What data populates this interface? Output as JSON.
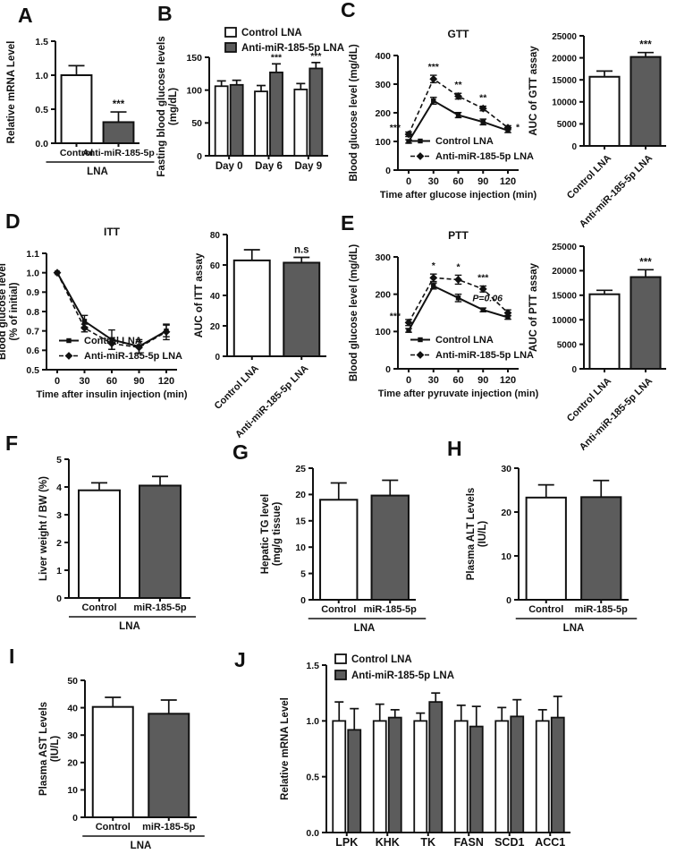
{
  "meta": {
    "background": "#ffffff",
    "ink": "#111111",
    "bar_gray": "#5c5c5c",
    "bar_white": "#ffffff"
  },
  "legend_labels": {
    "control": "Control LNA",
    "anti": "Anti-miR-185-5p LNA"
  },
  "chart_data": [
    {
      "id": "A",
      "letter": "A",
      "type": "bar",
      "ylabel": [
        "Relative mRNA Level"
      ],
      "ylim": [
        0,
        1.5
      ],
      "yticks": [
        0,
        0.5,
        1,
        1.5
      ],
      "ytick_labels": [
        "0.0",
        "0.5",
        "1.0",
        "1.5"
      ],
      "categories": [
        "Control",
        "Anti-miR-185-5p"
      ],
      "values": [
        1.0,
        0.31
      ],
      "errors": [
        0.14,
        0.15
      ],
      "sig": [
        "",
        "***"
      ],
      "fills": [
        "white",
        "gray"
      ],
      "xlabel_mode": "flat",
      "group_label": "LNA"
    },
    {
      "id": "B",
      "letter": "B",
      "type": "groupbar",
      "ylabel": [
        "Fasting blood glucose levels",
        "(mg/dL)"
      ],
      "ylim": [
        0,
        150
      ],
      "yticks": [
        0,
        50,
        100,
        150
      ],
      "ytick_labels": [
        "0",
        "50",
        "100",
        "150"
      ],
      "categories": [
        "Day 0",
        "Day 6",
        "Day 9"
      ],
      "series": [
        {
          "name": "Control LNA",
          "fill": "white",
          "values": [
            106,
            98,
            101
          ],
          "errors": [
            8,
            9,
            9
          ],
          "sig": [
            "",
            "",
            ""
          ]
        },
        {
          "name": "Anti-miR-185-5p LNA",
          "fill": "gray",
          "values": [
            108,
            127,
            133
          ],
          "errors": [
            7,
            13,
            9
          ],
          "sig": [
            "",
            "***",
            "***"
          ]
        }
      ],
      "legend": "top"
    },
    {
      "id": "C1",
      "letter": "C",
      "type": "line",
      "title": "GTT",
      "ylabel": [
        "Blood glucose level (mg/dL)"
      ],
      "xlabel": "Time after glucose injection (min)",
      "ylim": [
        0,
        400
      ],
      "yticks": [
        0,
        100,
        200,
        300,
        400
      ],
      "ytick_labels": [
        "0",
        "100",
        "200",
        "300",
        "400"
      ],
      "x": [
        0,
        30,
        60,
        90,
        120
      ],
      "series": [
        {
          "name": "Control LNA",
          "style": "solid",
          "marker": "square",
          "values": [
            100,
            242,
            192,
            168,
            138
          ],
          "errors": [
            6,
            12,
            9,
            10,
            7
          ]
        },
        {
          "name": "Anti-miR-185-5p LNA",
          "style": "dashed",
          "marker": "diamond",
          "values": [
            125,
            318,
            258,
            215,
            148
          ],
          "errors": [
            8,
            13,
            10,
            8,
            7
          ]
        }
      ],
      "annotations": [
        {
          "x": 0,
          "text": "***",
          "pos": "left"
        },
        {
          "x": 30,
          "text": "***",
          "pos": "above"
        },
        {
          "x": 60,
          "text": "**",
          "pos": "above"
        },
        {
          "x": 90,
          "text": "**",
          "pos": "above"
        },
        {
          "x": 120,
          "text": "*",
          "pos": "right"
        }
      ],
      "legend": "inside"
    },
    {
      "id": "C2",
      "type": "bar",
      "ylabel": [
        "AUC of GTT assay"
      ],
      "ylim": [
        0,
        25000
      ],
      "yticks": [
        0,
        5000,
        10000,
        15000,
        20000,
        25000
      ],
      "ytick_labels": [
        "0",
        "5000",
        "10000",
        "15000",
        "20000",
        "25000"
      ],
      "categories": [
        "Control LNA",
        "Anti-miR-185-5p LNA"
      ],
      "values": [
        15700,
        20200
      ],
      "errors": [
        1300,
        1000
      ],
      "sig": [
        "",
        "***"
      ],
      "fills": [
        "white",
        "gray"
      ],
      "xlabel_mode": "angled"
    },
    {
      "id": "D1",
      "letter": "D",
      "type": "line",
      "title": "ITT",
      "ylabel": [
        "Blood glucose level",
        "(% of initial)"
      ],
      "xlabel": "Time after insulin injection (min)",
      "ylim": [
        0.5,
        1.1
      ],
      "yticks": [
        0.5,
        0.6,
        0.7,
        0.8,
        0.9,
        1.0,
        1.1
      ],
      "ytick_labels": [
        "0.5",
        "0.6",
        "0.7",
        "0.8",
        "0.9",
        "1.0",
        "1.1"
      ],
      "x": [
        0,
        30,
        60,
        90,
        120
      ],
      "series": [
        {
          "name": "Control LNA",
          "style": "solid",
          "marker": "square",
          "values": [
            1.0,
            0.75,
            0.655,
            0.62,
            0.7
          ],
          "errors": [
            0,
            0.03,
            0.05,
            0.035,
            0.03
          ]
        },
        {
          "name": "Anti-miR-185-5p LNA",
          "style": "dashed",
          "marker": "diamond",
          "values": [
            1.0,
            0.715,
            0.635,
            0.615,
            0.695
          ],
          "errors": [
            0,
            0.02,
            0.03,
            0.03,
            0.04
          ]
        }
      ],
      "annotations": [],
      "legend": "inside"
    },
    {
      "id": "D2",
      "type": "bar",
      "ylabel": [
        "AUC of ITT assay"
      ],
      "ylim": [
        0,
        80
      ],
      "yticks": [
        0,
        20,
        40,
        60,
        80
      ],
      "ytick_labels": [
        "0",
        "20",
        "40",
        "60",
        "80"
      ],
      "categories": [
        "Control LNA",
        "Anti-miR-185-5p LNA"
      ],
      "values": [
        63,
        61.5
      ],
      "errors": [
        7,
        3.5
      ],
      "sig": [
        "",
        "n.s"
      ],
      "fills": [
        "white",
        "gray"
      ],
      "xlabel_mode": "angled"
    },
    {
      "id": "E1",
      "letter": "E",
      "type": "line",
      "title": "PTT",
      "ylabel": [
        "Blood glucose level (mg/dL)"
      ],
      "xlabel": "Time after pyruvate injection (min)",
      "ylim": [
        0,
        300
      ],
      "yticks": [
        0,
        100,
        200,
        300
      ],
      "ytick_labels": [
        "0",
        "100",
        "200",
        "300"
      ],
      "x": [
        0,
        30,
        60,
        90,
        120
      ],
      "series": [
        {
          "name": "Control LNA",
          "style": "solid",
          "marker": "square",
          "values": [
            103,
            222,
            190,
            158,
            138
          ],
          "errors": [
            5,
            8,
            10,
            5,
            5
          ]
        },
        {
          "name": "Anti-miR-185-5p LNA",
          "style": "dashed",
          "marker": "diamond",
          "values": [
            124,
            244,
            239,
            214,
            150
          ],
          "errors": [
            8,
            10,
            12,
            8,
            8
          ]
        }
      ],
      "annotations": [
        {
          "x": 0,
          "text": "***",
          "pos": "left"
        },
        {
          "x": 30,
          "text": "*",
          "pos": "above"
        },
        {
          "x": 60,
          "text": "*",
          "pos": "above"
        },
        {
          "x": 90,
          "text": "***",
          "pos": "above"
        },
        {
          "x": 120,
          "text": "P=0.06",
          "pos": "upleft"
        }
      ],
      "legend": "inside"
    },
    {
      "id": "E2",
      "type": "bar",
      "ylabel": [
        "AUC of PTT assay"
      ],
      "ylim": [
        0,
        25000
      ],
      "yticks": [
        0,
        5000,
        10000,
        15000,
        20000,
        25000
      ],
      "ytick_labels": [
        "0",
        "5000",
        "10000",
        "15000",
        "20000",
        "25000"
      ],
      "categories": [
        "Control LNA",
        "Anti-miR-185-5p LNA"
      ],
      "values": [
        15200,
        18700
      ],
      "errors": [
        800,
        1500
      ],
      "sig": [
        "",
        "***"
      ],
      "fills": [
        "white",
        "gray"
      ],
      "xlabel_mode": "angled"
    },
    {
      "id": "F",
      "letter": "F",
      "type": "bar",
      "ylabel": [
        "Liver weight / BW (%)"
      ],
      "ylim": [
        0,
        5
      ],
      "yticks": [
        0,
        1,
        2,
        3,
        4,
        5
      ],
      "ytick_labels": [
        "0",
        "1",
        "2",
        "3",
        "4",
        "5"
      ],
      "categories": [
        "Control",
        "miR-185-5p"
      ],
      "values": [
        3.88,
        4.05
      ],
      "errors": [
        0.27,
        0.33
      ],
      "sig": [
        "",
        ""
      ],
      "fills": [
        "white",
        "gray"
      ],
      "xlabel_mode": "flat",
      "group_label": "LNA"
    },
    {
      "id": "G",
      "letter": "G",
      "type": "bar",
      "ylabel": [
        "Hepatic TG level",
        "(mg/g tissue)"
      ],
      "ylim": [
        0,
        25
      ],
      "yticks": [
        0,
        5,
        10,
        15,
        20,
        25
      ],
      "ytick_labels": [
        "0",
        "5",
        "10",
        "15",
        "20",
        "25"
      ],
      "categories": [
        "Control",
        "miR-185-5p"
      ],
      "values": [
        19.0,
        19.8
      ],
      "errors": [
        3.2,
        2.9
      ],
      "sig": [
        "",
        ""
      ],
      "fills": [
        "white",
        "gray"
      ],
      "xlabel_mode": "flat",
      "group_label": "LNA"
    },
    {
      "id": "H",
      "letter": "H",
      "type": "bar",
      "ylabel": [
        "Plasma ALT Levels",
        "(IU/L)"
      ],
      "ylim": [
        0,
        30
      ],
      "yticks": [
        0,
        10,
        20,
        30
      ],
      "ytick_labels": [
        "0",
        "10",
        "20",
        "30"
      ],
      "categories": [
        "Control",
        "miR-185-5p"
      ],
      "values": [
        23.3,
        23.4
      ],
      "errors": [
        2.9,
        3.8
      ],
      "sig": [
        "",
        ""
      ],
      "fills": [
        "white",
        "gray"
      ],
      "xlabel_mode": "flat",
      "group_label": "LNA"
    },
    {
      "id": "I",
      "letter": "I",
      "type": "bar",
      "ylabel": [
        "Plasma AST Levels",
        "(IU/L)"
      ],
      "ylim": [
        0,
        50
      ],
      "yticks": [
        0,
        10,
        20,
        30,
        40,
        50
      ],
      "ytick_labels": [
        "0",
        "10",
        "20",
        "30",
        "40",
        "50"
      ],
      "categories": [
        "Control",
        "miR-185-5p"
      ],
      "values": [
        40.3,
        37.8
      ],
      "errors": [
        3.5,
        5.0
      ],
      "sig": [
        "",
        ""
      ],
      "fills": [
        "white",
        "gray"
      ],
      "xlabel_mode": "flat",
      "group_label": "LNA"
    },
    {
      "id": "J",
      "letter": "J",
      "type": "groupbar",
      "ylabel": [
        "Relative mRNA Level"
      ],
      "ylim": [
        0,
        1.5
      ],
      "yticks": [
        0,
        0.5,
        1,
        1.5
      ],
      "ytick_labels": [
        "0.0",
        "0.5",
        "1.0",
        "1.5"
      ],
      "categories": [
        "LPK",
        "KHK",
        "TK",
        "FASN",
        "SCD1",
        "ACC1"
      ],
      "series": [
        {
          "name": "Control LNA",
          "fill": "white",
          "values": [
            1.0,
            1.0,
            1.0,
            1.0,
            1.0,
            1.0
          ],
          "errors": [
            0.17,
            0.15,
            0.07,
            0.14,
            0.12,
            0.1
          ],
          "sig": [
            "",
            "",
            "",
            "",
            "",
            ""
          ]
        },
        {
          "name": "Anti-miR-185-5p LNA",
          "fill": "gray",
          "values": [
            0.92,
            1.03,
            1.17,
            0.95,
            1.04,
            1.03
          ],
          "errors": [
            0.19,
            0.07,
            0.08,
            0.18,
            0.15,
            0.19
          ],
          "sig": [
            "",
            "",
            "",
            "",
            "",
            ""
          ]
        }
      ],
      "legend": "inside-top"
    }
  ]
}
